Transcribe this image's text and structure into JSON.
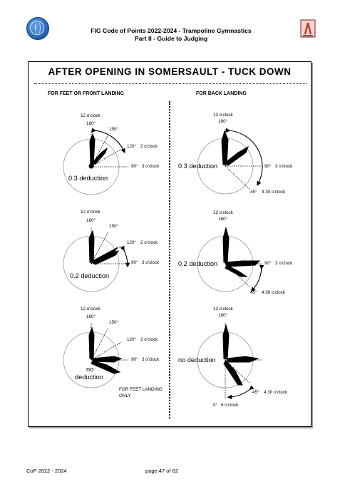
{
  "header": {
    "title_line1": "FIG Code of Points 2022-2024 - Trampoline Gymnastics",
    "title_line2": "Part II - Guide to Judging",
    "left_logo": "fig-globe-logo",
    "right_logo": "trampoline-gymnast-logo"
  },
  "figure": {
    "title": "AFTER OPENING IN SOMERSAULT - TUCK DOWN",
    "left_heading": "FOR FEET OR FRONT LANDING",
    "right_heading": "FOR BACK LANDING",
    "feet_only_note_line1": "FOR FEET LANDING",
    "feet_only_note_line2": "ONLY"
  },
  "labels": {
    "twelve": "12 o'clock",
    "deg180": "180°",
    "deg150": "150°",
    "deg120": "120°",
    "two": "2 o'clock",
    "deg90": "90°",
    "three": "3 o'clock",
    "deg45": "45°",
    "four30": "4:30 o'clock",
    "deg0": "0°",
    "six": "6 o'clock"
  },
  "deductions": {
    "d03": "0.3 deduction",
    "d02": "0.2 deduction",
    "no_line1": "no",
    "no_line2": "deduction",
    "no_full": "no deduction"
  },
  "footer": {
    "left": "CoP 2022 - 2024",
    "center": "page 47 of 62"
  },
  "colors": {
    "logo_blue": "#1f5fb0",
    "logo_red": "#c0392b"
  }
}
